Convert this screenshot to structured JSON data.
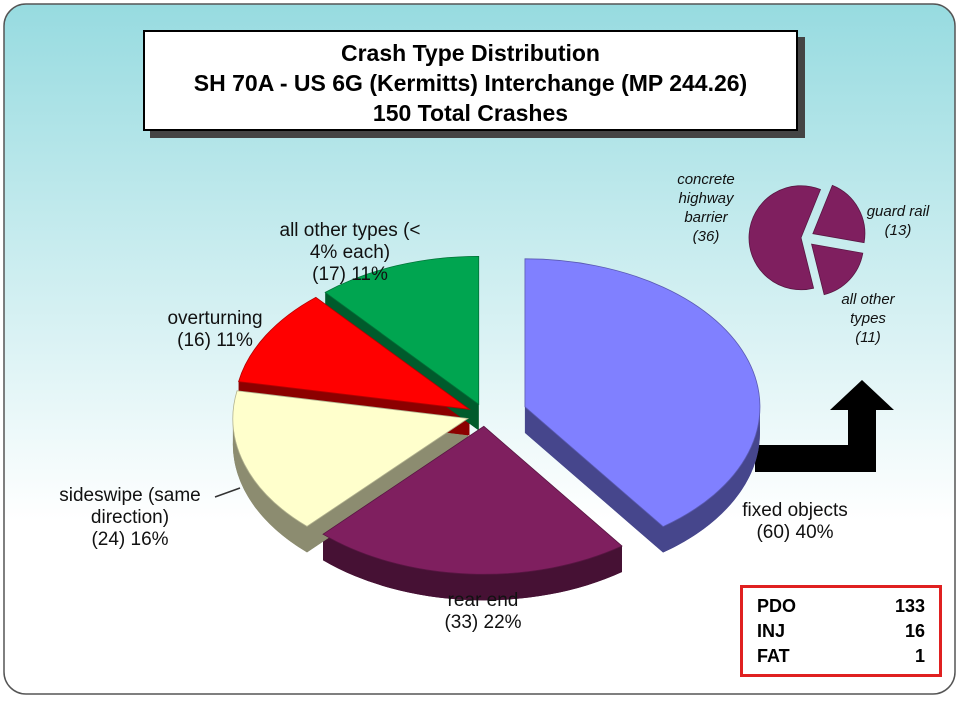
{
  "chart_data": [
    {
      "type": "pie",
      "title": "Crash Type Distribution",
      "subtitle": "SH 70A - US 6G (Kermitts) Interchange (MP 244.26)",
      "note": "150 Total Crashes",
      "categories": [
        "fixed objects",
        "rear end",
        "sideswipe (same direction)",
        "overturning",
        "all other types (< 4% each)"
      ],
      "values": [
        60,
        33,
        24,
        16,
        17
      ],
      "value_labels": [
        "(60) 40%",
        "(33) 22%",
        "(24) 16%",
        "(16) 11%",
        "(17) 11%"
      ],
      "colors": [
        "#8080ff",
        "#7f1f5f",
        "#ffffcc",
        "#ff0000",
        "#00a550"
      ]
    },
    {
      "type": "pie",
      "categories": [
        "guard rail",
        "all other types",
        "concrete highway barrier"
      ],
      "values": [
        13,
        11,
        36
      ],
      "value_labels": [
        "(13)",
        "(11)",
        "(36)"
      ],
      "color": "#7f1f5f"
    }
  ],
  "table": {
    "rows": [
      [
        "PDO",
        "133"
      ],
      [
        "INJ",
        "16"
      ],
      [
        "FAT",
        "1"
      ]
    ]
  }
}
